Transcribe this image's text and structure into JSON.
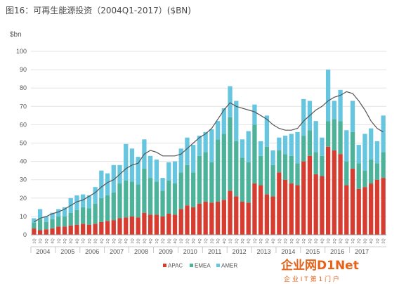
{
  "title": "图16：可再生能源投资（2004Q1-2017）($BN)",
  "chart_data": {
    "type": "bar",
    "stacked": true,
    "ylabel": "$bn",
    "ylim": [
      0,
      100
    ],
    "yticks": [
      0,
      10,
      20,
      30,
      40,
      50,
      60,
      70,
      80,
      90,
      100
    ],
    "years": [
      "2004",
      "2005",
      "2006",
      "2007",
      "2008",
      "2009",
      "2010",
      "2011",
      "2012",
      "2013",
      "2014",
      "2015",
      "2016",
      "2017"
    ],
    "quarter_labels": [
      "1Q",
      "2Q",
      "3Q",
      "4Q"
    ],
    "legend": [
      "APAC",
      "EMEA",
      "AMER"
    ],
    "colors": {
      "APAC": "#d63c2f",
      "EMEA": "#4cb39a",
      "AMER": "#66c5df",
      "line": "#555555"
    },
    "series": [
      {
        "name": "APAC",
        "values": [
          3.5,
          2.5,
          3,
          3.5,
          4.5,
          4.5,
          5,
          5.5,
          6,
          5.5,
          6,
          7,
          7.5,
          8,
          9,
          9.5,
          10,
          9.5,
          12,
          11,
          11,
          10,
          11.5,
          11,
          14,
          16,
          15,
          17,
          18,
          17.5,
          18,
          19,
          24,
          21,
          18,
          17.5,
          28,
          27,
          22,
          21,
          34,
          30,
          28,
          27,
          40,
          43,
          33,
          32,
          48,
          46,
          44,
          27,
          36,
          25,
          26,
          28,
          30,
          31
        ]
      },
      {
        "name": "EMEA",
        "values": [
          3,
          6,
          4,
          5,
          5.5,
          5.5,
          7,
          8,
          9,
          9,
          11,
          13,
          14,
          15,
          19,
          20,
          19,
          18,
          24,
          20,
          18,
          14,
          18,
          17,
          20,
          22,
          19,
          26,
          27,
          22,
          34,
          36,
          40,
          30,
          24,
          22,
          32,
          16,
          26,
          17,
          12,
          14,
          15,
          12,
          14,
          14,
          12,
          11,
          14,
          17,
          18,
          13,
          20,
          14,
          9,
          13,
          9,
          14
        ]
      },
      {
        "name": "AMER",
        "values": [
          2.5,
          5.5,
          3,
          3.5,
          4,
          5,
          8,
          8,
          7,
          7,
          9,
          15,
          12,
          15,
          10,
          20,
          18,
          15,
          16,
          12,
          12,
          7,
          10,
          12,
          13,
          15,
          15,
          11,
          11,
          18,
          10,
          14,
          17,
          22,
          10,
          17,
          11,
          8,
          17,
          8,
          7,
          10,
          12,
          17,
          20,
          16,
          17,
          10,
          28,
          10,
          17,
          17,
          17,
          10,
          20,
          17,
          12,
          20
        ]
      },
      {
        "name": "",
        "type": "line",
        "values": [
          7,
          9,
          10,
          11.5,
          12.5,
          14,
          16,
          18,
          19,
          21,
          23,
          26,
          28.5,
          30,
          33,
          36,
          38,
          39,
          44,
          46,
          45,
          43,
          43,
          43,
          44,
          47,
          50,
          53,
          55,
          58,
          63,
          68,
          72,
          70,
          69,
          68,
          67,
          65,
          63,
          60,
          58,
          57,
          57,
          58,
          62,
          65,
          68,
          70,
          73,
          75,
          76,
          78,
          77,
          73,
          68,
          62,
          58,
          56
        ]
      }
    ]
  },
  "watermark": {
    "main": "企业网D1Net",
    "sub": "企 业 I T 第 1 门 户"
  }
}
